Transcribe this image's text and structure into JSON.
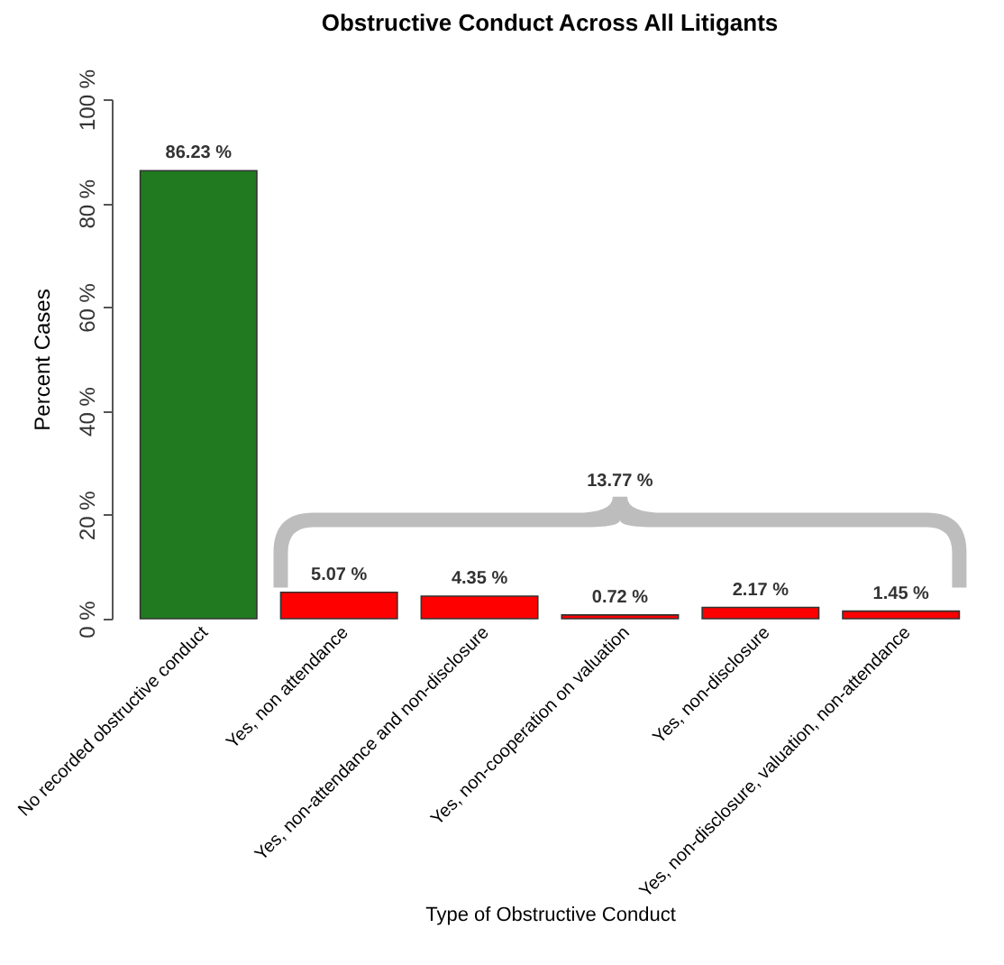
{
  "chart_data": {
    "type": "bar",
    "title": "Obstructive Conduct Across All Litigants",
    "xlabel": "Type of Obstructive Conduct",
    "ylabel": "Percent Cases",
    "categories": [
      "No recorded obstructive conduct",
      "Yes, non attendance",
      "Yes, non-attendance and non-disclosure",
      "Yes, non-cooperation on valuation",
      "Yes, non-disclosure",
      "Yes, non-disclosure, valuation, non-attendance"
    ],
    "values": [
      86.23,
      5.07,
      4.35,
      0.72,
      2.17,
      1.45
    ],
    "colors": [
      "#217a1f",
      "#ff0000",
      "#ff0000",
      "#ff0000",
      "#ff0000",
      "#ff0000"
    ],
    "value_labels": [
      "86.23 %",
      "5.07 %",
      "4.35 %",
      "0.72 %",
      "2.17 %",
      "1.45 %"
    ],
    "ylim": [
      0,
      100
    ],
    "yticks": [
      {
        "value": 0,
        "label": "0 %"
      },
      {
        "value": 20,
        "label": "20 %"
      },
      {
        "value": 40,
        "label": "40 %"
      },
      {
        "value": 60,
        "label": "60 %"
      },
      {
        "value": 80,
        "label": "80 %"
      },
      {
        "value": 100,
        "label": "100 %"
      }
    ],
    "annotations": [
      "13.77 %"
    ]
  }
}
